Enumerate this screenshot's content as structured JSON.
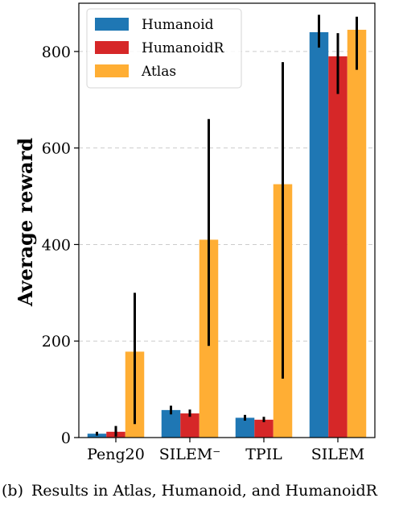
{
  "chart_data": {
    "type": "bar",
    "title": "",
    "xlabel": "",
    "ylabel": "Average reward",
    "ylim": [
      0,
      900
    ],
    "yticks": [
      0,
      200,
      400,
      600,
      800
    ],
    "grid": "horizontal dashed",
    "legend_position": "top-left",
    "categories": [
      "Peng20",
      "SILEM⁻",
      "TPIL",
      "SILEM"
    ],
    "series": [
      {
        "name": "Humanoid",
        "color": "#1f77b4",
        "values": [
          8,
          57,
          41,
          840
        ],
        "error_low": [
          4,
          48,
          35,
          808
        ],
        "error_high": [
          12,
          66,
          47,
          876
        ]
      },
      {
        "name": "HumanoidR",
        "color": "#d62728",
        "values": [
          12,
          50,
          37,
          790
        ],
        "error_low": [
          2,
          43,
          32,
          712
        ],
        "error_high": [
          24,
          58,
          43,
          838
        ]
      },
      {
        "name": "Atlas",
        "color": "#ffae34",
        "values": [
          178,
          410,
          525,
          845
        ],
        "error_low": [
          28,
          190,
          122,
          762
        ],
        "error_high": [
          300,
          660,
          778,
          872
        ]
      }
    ]
  },
  "caption": {
    "tag": "(b)",
    "text": "Results in Atlas, Humanoid, and HumanoidR"
  }
}
